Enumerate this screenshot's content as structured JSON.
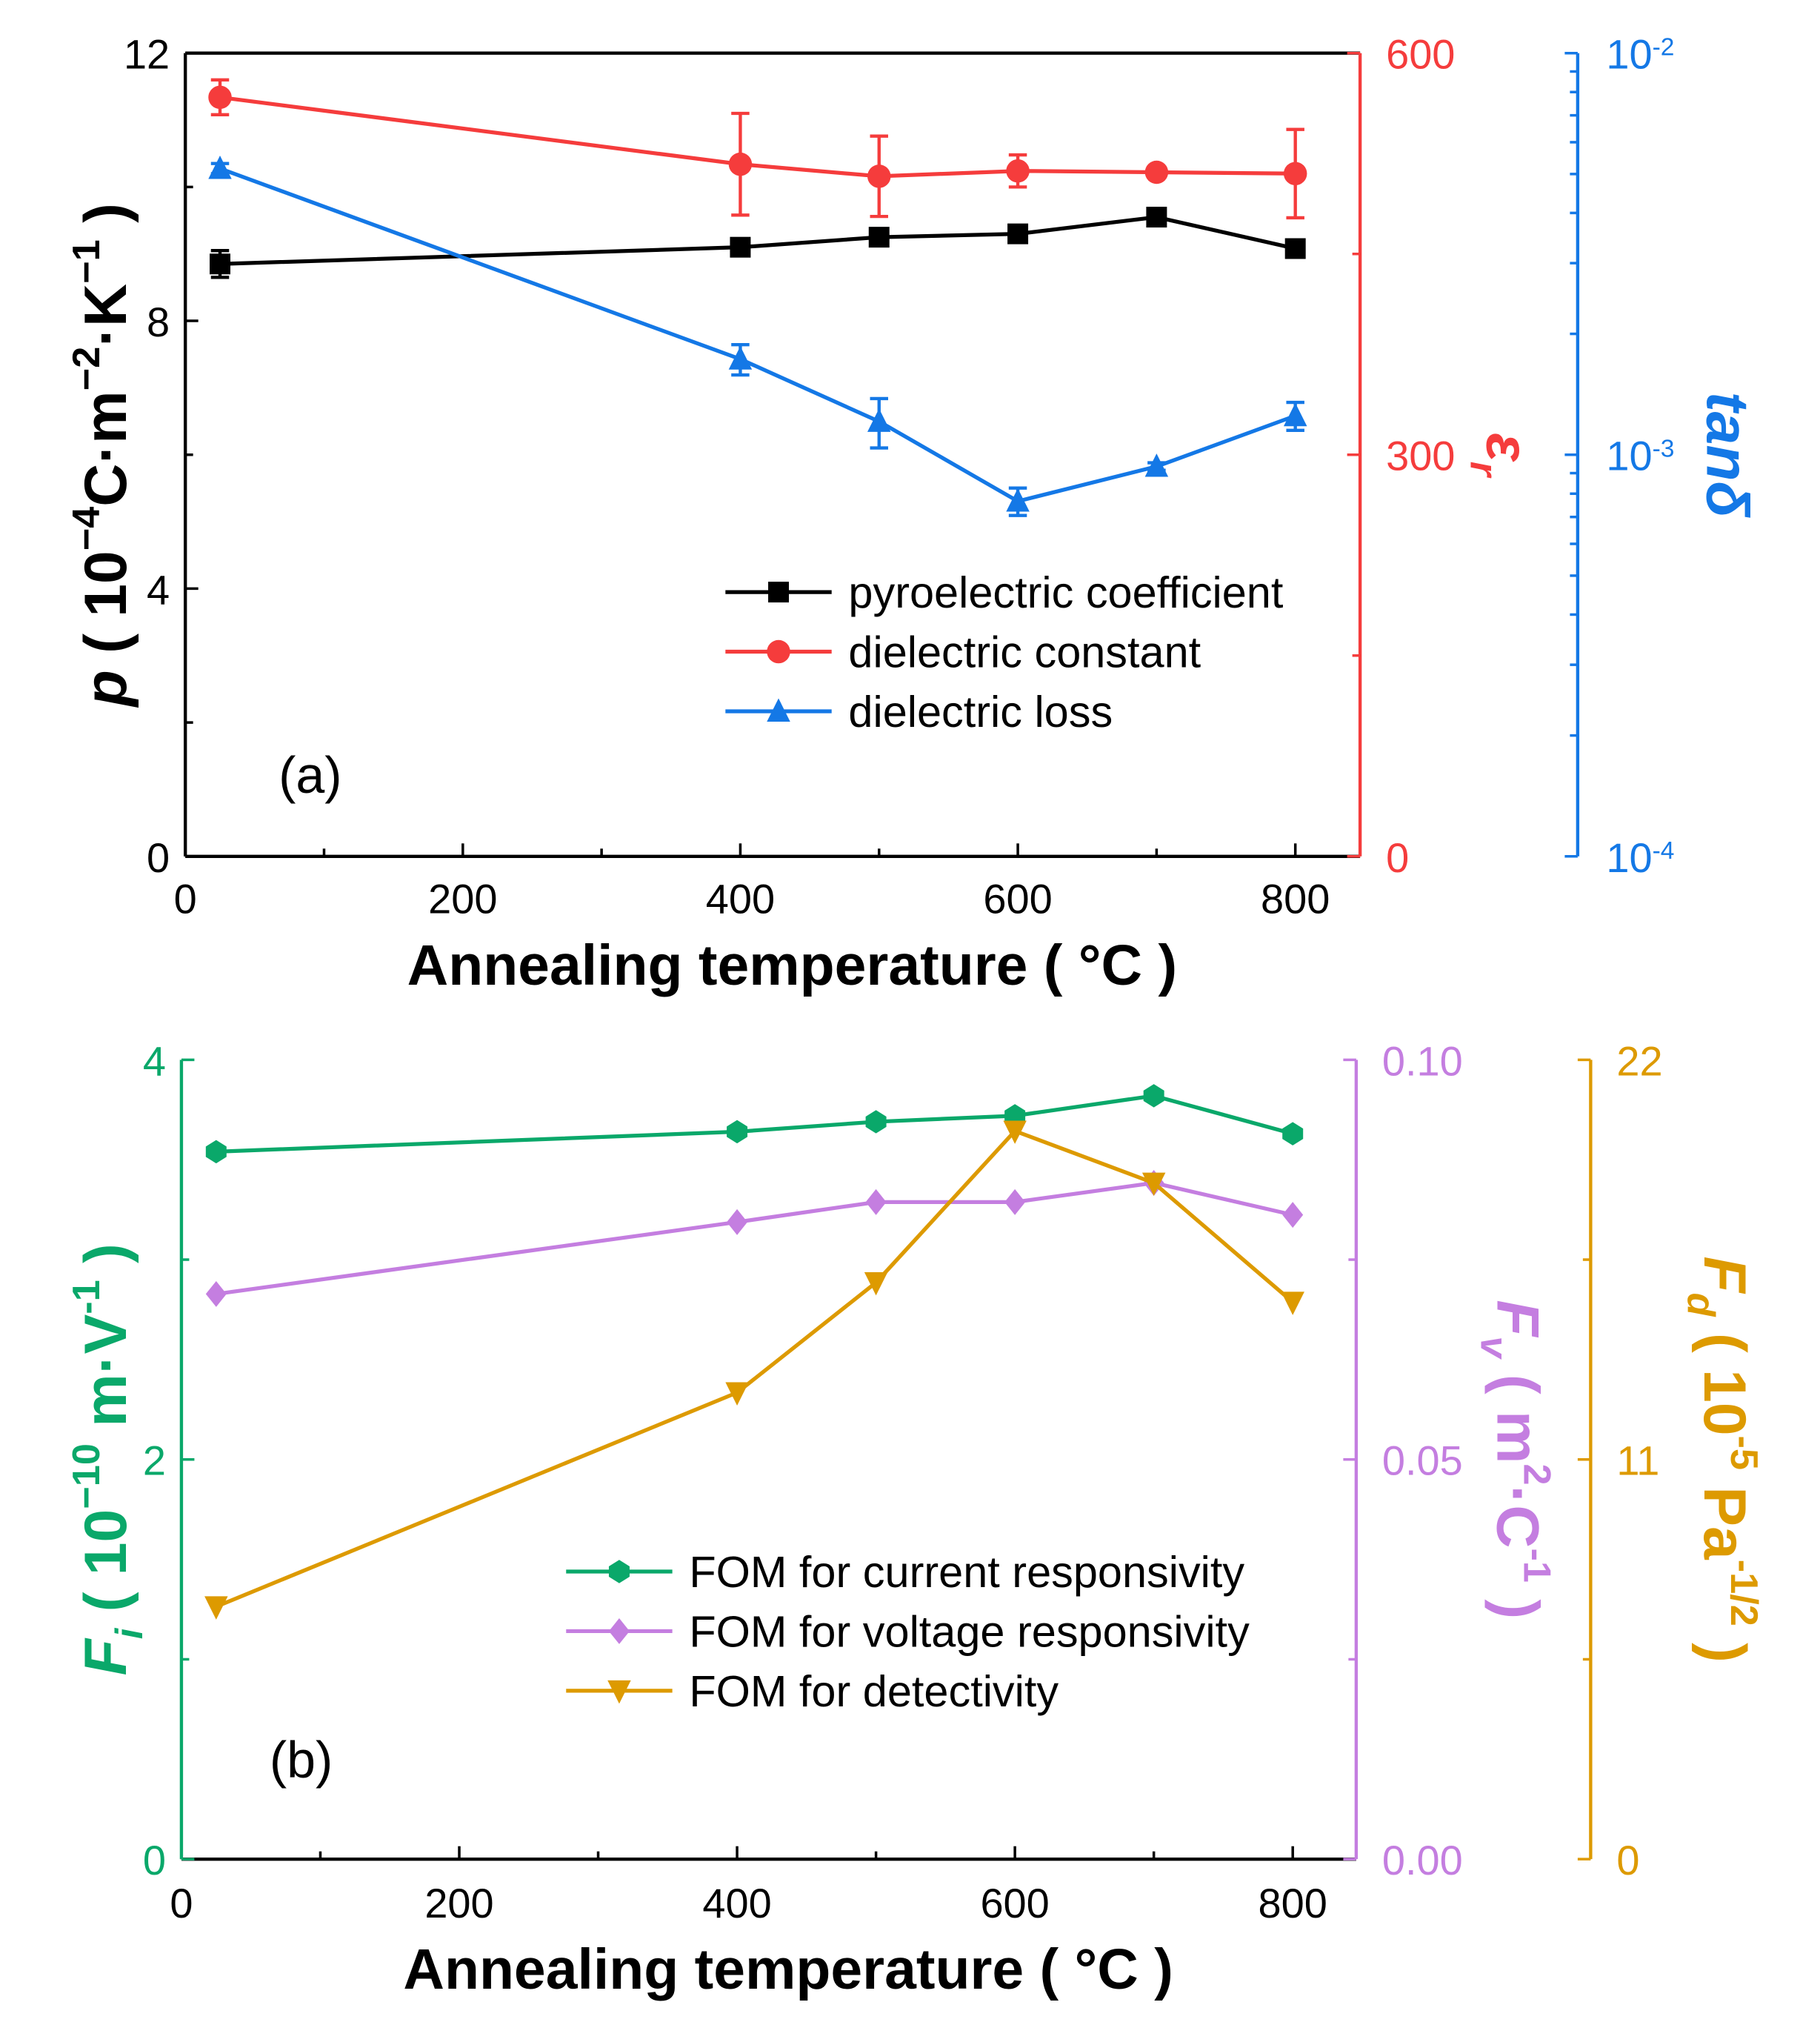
{
  "colors": {
    "black": "#000000",
    "red": "#f53c3c",
    "blue": "#1478e6",
    "green": "#0aa86a",
    "purple": "#c47ee0",
    "gold": "#dd9a00"
  },
  "chart_data": [
    {
      "type": "line",
      "panel_label": "(a)",
      "xlabel": "Annealing temperature ( °C )",
      "xlim": [
        0,
        840
      ],
      "xticks": [
        "0",
        "200",
        "400",
        "600",
        "800"
      ],
      "x": [
        25,
        400,
        500,
        600,
        700,
        800
      ],
      "axes": [
        {
          "id": "p",
          "side": "left",
          "color": "black",
          "scale": "linear",
          "ylim": [
            0,
            12
          ],
          "ticks": [
            "0",
            "4",
            "8",
            "12"
          ],
          "minor": [
            2,
            6,
            10
          ],
          "label": [
            {
              "t": "p",
              "i": true
            },
            {
              "t": " ( 10"
            },
            {
              "t": "−4",
              "sup": true
            },
            {
              "t": "C·m"
            },
            {
              "t": "−2",
              "sup": true
            },
            {
              "t": "·K"
            },
            {
              "t": "−1",
              "sup": true
            },
            {
              "t": " )"
            }
          ]
        },
        {
          "id": "er",
          "side": "right",
          "color": "red",
          "scale": "linear",
          "ylim": [
            0,
            600
          ],
          "ticks": [
            "0",
            "300",
            "600"
          ],
          "minor": [
            150,
            450
          ],
          "label": [
            {
              "t": "ε",
              "i": true
            },
            {
              "t": "r",
              "sub": true,
              "i": true
            }
          ]
        },
        {
          "id": "tan",
          "side": "right2",
          "color": "blue",
          "scale": "log",
          "ylim": [
            0.0001,
            0.01
          ],
          "tick_values": [
            0.0001,
            0.001,
            0.01
          ],
          "ticks": [
            {
              "base": "10",
              "exp": "-4"
            },
            {
              "base": "10",
              "exp": "-3"
            },
            {
              "base": "10",
              "exp": "-2"
            }
          ],
          "label": [
            {
              "t": "tanδ",
              "i": true
            }
          ]
        }
      ],
      "series": [
        {
          "name": "pyroelectric coefficient",
          "axis": "p",
          "color": "black",
          "marker": "square",
          "values": [
            8.85,
            9.1,
            9.25,
            9.3,
            9.55,
            9.08
          ],
          "errors": [
            0.2,
            0.08,
            0.08,
            0.08,
            0.08,
            0.08
          ]
        },
        {
          "name": "dielectric constant",
          "axis": "er",
          "color": "red",
          "marker": "circle",
          "values": [
            567,
            517,
            508,
            512,
            511,
            510
          ],
          "errors": [
            13,
            38,
            30,
            12,
            3,
            33
          ]
        },
        {
          "name": "dielectric loss",
          "axis": "tan",
          "color": "blue",
          "marker": "triangle-up",
          "values": [
            0.00516,
            0.00173,
            0.00121,
            0.000766,
            0.000935,
            0.00125
          ],
          "errors": [
            0.00015,
            0.00015,
            0.00017,
            6e-05,
            2e-05,
            0.0001
          ]
        }
      ],
      "legend_position": "center-right"
    },
    {
      "type": "line",
      "panel_label": "(b)",
      "xlabel": "Annealing temperature ( °C )",
      "xlim": [
        0,
        840
      ],
      "xticks": [
        "0",
        "200",
        "400",
        "600",
        "800"
      ],
      "x": [
        25,
        400,
        500,
        600,
        700,
        800
      ],
      "axes": [
        {
          "id": "fi",
          "side": "left",
          "color": "green",
          "scale": "linear",
          "ylim": [
            0,
            4
          ],
          "ticks": [
            "0",
            "2",
            "4"
          ],
          "minor": [
            1,
            3
          ],
          "label": [
            {
              "t": "F",
              "i": true
            },
            {
              "t": "i",
              "sub": true,
              "i": true
            },
            {
              "t": " ( 10"
            },
            {
              "t": "−10",
              "sup": true
            },
            {
              "t": " m·V"
            },
            {
              "t": "-1",
              "sup": true
            },
            {
              "t": " )"
            }
          ]
        },
        {
          "id": "fv",
          "side": "right",
          "color": "purple",
          "scale": "linear",
          "ylim": [
            0,
            0.1
          ],
          "ticks": [
            "0.00",
            "0.05",
            "0.10"
          ],
          "minor": [
            0.025,
            0.075
          ],
          "label": [
            {
              "t": "F",
              "i": true
            },
            {
              "t": "v",
              "sub": true,
              "i": true
            },
            {
              "t": " ( m"
            },
            {
              "t": "2",
              "sup": true
            },
            {
              "t": "·C"
            },
            {
              "t": "-1",
              "sup": true
            },
            {
              "t": " )"
            }
          ]
        },
        {
          "id": "fd",
          "side": "right2",
          "color": "gold",
          "scale": "linear",
          "ylim": [
            0,
            22
          ],
          "ticks": [
            "0",
            "11",
            "22"
          ],
          "minor": [
            5.5,
            16.5
          ],
          "label": [
            {
              "t": "F",
              "i": true
            },
            {
              "t": "d",
              "sub": true,
              "i": true
            },
            {
              "t": " ( 10"
            },
            {
              "t": "-5",
              "sup": true
            },
            {
              "t": " Pa"
            },
            {
              "t": "-1/2",
              "sup": true
            },
            {
              "t": " )"
            }
          ]
        }
      ],
      "series": [
        {
          "name": "FOM for current responsivity",
          "axis": "fi",
          "color": "green",
          "marker": "hexagon",
          "values": [
            3.54,
            3.64,
            3.69,
            3.72,
            3.82,
            3.63
          ]
        },
        {
          "name": "FOM for voltage responsivity",
          "axis": "fv",
          "color": "purple",
          "marker": "diamond",
          "values": [
            0.0707,
            0.0797,
            0.0822,
            0.0822,
            0.0846,
            0.0806
          ]
        },
        {
          "name": "FOM for detectivity",
          "axis": "fd",
          "color": "gold",
          "marker": "triangle-down",
          "values": [
            6.95,
            12.84,
            15.87,
            20.04,
            18.61,
            15.33
          ]
        }
      ],
      "legend_position": "center-right"
    }
  ]
}
